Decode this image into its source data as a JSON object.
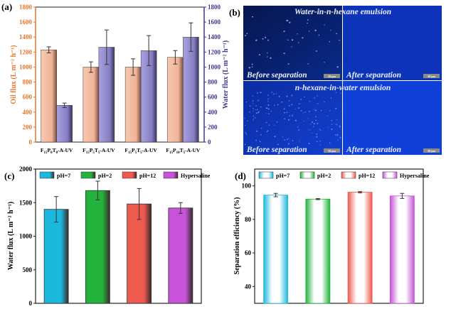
{
  "chart_data": [
    {
      "panel": "(a)",
      "type": "bar",
      "categories": [
        "F15P0T0-A-UV",
        "F15P5T5-A-UV",
        "F15P5T5-A-UV",
        "F15P10T5-A-UV"
      ],
      "category_parts": [
        [
          "F",
          "15",
          "P",
          "0",
          "T",
          "0",
          "-A-UV"
        ],
        [
          "F",
          "15",
          "P",
          "5",
          "T",
          "5",
          "-A-UV"
        ],
        [
          "F",
          "15",
          "P",
          "5",
          "T",
          "5",
          "-A-UV"
        ],
        [
          "F",
          "15",
          "P",
          "10",
          "T",
          "5",
          "-A-UV"
        ]
      ],
      "series": [
        {
          "name": "Oil flux",
          "axis": "left",
          "color": "#f4b99c",
          "values": [
            1230,
            1000,
            1000,
            1130
          ],
          "errors": [
            40,
            70,
            110,
            90
          ]
        },
        {
          "name": "Water flux",
          "axis": "right",
          "color": "#8e86c9",
          "values": [
            490,
            1265,
            1220,
            1400
          ],
          "errors": [
            30,
            230,
            200,
            190
          ]
        }
      ],
      "ylabel": "Oil flux (L m⁻² h⁻¹)",
      "y2label": "Water flux (L m⁻² h⁻¹)",
      "ylim": [
        0,
        1800
      ],
      "y2lim": [
        0,
        1800
      ],
      "yticks": [
        0,
        200,
        400,
        600,
        800,
        1000,
        1200,
        1400,
        1600,
        1800
      ],
      "left_axis_color": "#e8762c",
      "right_axis_color": "#3c3a8c"
    },
    {
      "panel": "(c)",
      "type": "bar",
      "categories": [
        "pH=7",
        "pH=2",
        "pH=12",
        "Hypersaline"
      ],
      "values": [
        1400,
        1680,
        1480,
        1420
      ],
      "errors": [
        190,
        140,
        230,
        80
      ],
      "colors": [
        "#1cb8dc",
        "#23b33c",
        "#ee5a4e",
        "#c653d8"
      ],
      "ylabel": "Water flux (L m⁻² h⁻¹)",
      "ylim": [
        0,
        2000
      ],
      "yticks": [
        0,
        500,
        1000,
        1500,
        2000
      ],
      "legend": "top"
    },
    {
      "panel": "(d)",
      "type": "bar",
      "categories": [
        "pH=7",
        "pH=2",
        "pH=12",
        "Hypersaline"
      ],
      "values": [
        94.5,
        92.1,
        96.2,
        94.0
      ],
      "errors": [
        1.0,
        0.3,
        0.4,
        1.5
      ],
      "colors": [
        "#1cb8dc",
        "#23b33c",
        "#ee5a4e",
        "#c653d8"
      ],
      "ylabel": "Separation efficiency (%)",
      "ylim": [
        30,
        110
      ],
      "yticks": [
        40,
        60,
        80,
        100
      ],
      "legend": "top"
    }
  ],
  "micrographs": {
    "panel": "(b)",
    "top_title": "Water-in-n-hexane emulsion",
    "bottom_title": "n-hexane-in-water emulsion",
    "before": "Before separation",
    "after": "After separation",
    "scale_bar": "50 μm"
  }
}
